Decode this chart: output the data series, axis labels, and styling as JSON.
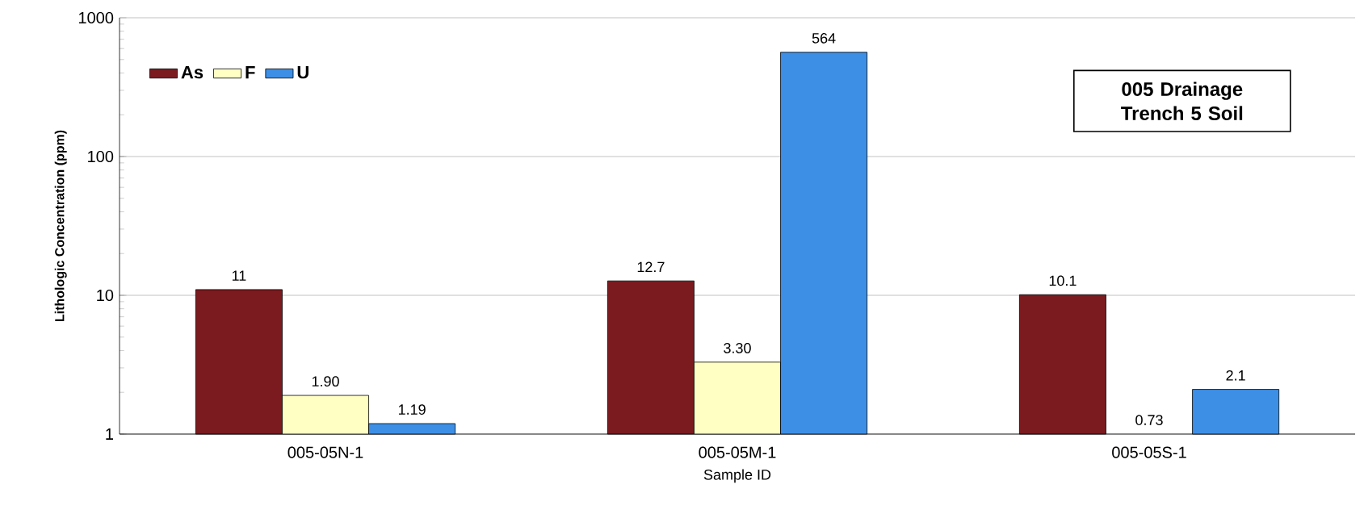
{
  "chart_data": {
    "type": "bar",
    "title": "005 Drainage Trench 5 Soil",
    "xlabel": "Sample ID",
    "ylabel": "Lithologic Concentration (ppm)",
    "categories": [
      "005-05N-1",
      "005-05M-1",
      "005-05S-1"
    ],
    "series": [
      {
        "name": "As",
        "color": "#7b1a1f",
        "values": [
          11,
          12.7,
          10.1
        ],
        "value_labels": [
          "11",
          "12.7",
          "10.1"
        ]
      },
      {
        "name": "F",
        "color": "#ffffc4",
        "values": [
          1.9,
          3.3,
          null
        ],
        "value_labels": [
          "1.90",
          "3.30",
          "0.73"
        ]
      },
      {
        "name": "U",
        "color": "#3d8fe6",
        "values": [
          1.19,
          564,
          2.1
        ],
        "value_labels": [
          "1.19",
          "564",
          "2.1"
        ]
      }
    ],
    "log": "y",
    "ylim": [
      1,
      1000
    ],
    "yticks": [
      1,
      10,
      100,
      1000
    ],
    "grid": "y",
    "legend": "top left"
  }
}
